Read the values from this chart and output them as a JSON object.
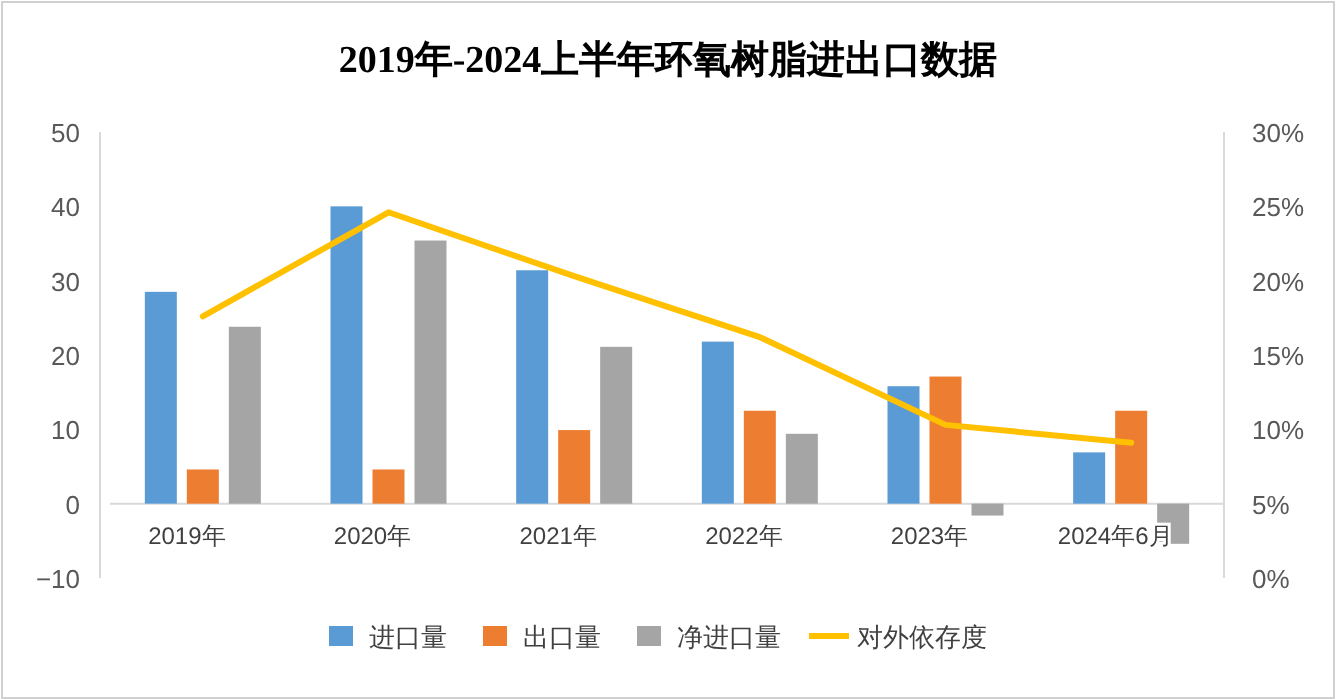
{
  "chart_data": {
    "type": "bar",
    "title": "2019年-2024上半年环氧树脂进出口数据",
    "categories": [
      "2019年",
      "2020年",
      "2021年",
      "2022年",
      "2023年",
      "2024年6月"
    ],
    "series": [
      {
        "name": "进口量",
        "color": "#5b9bd5",
        "values": [
          28.5,
          40,
          31.4,
          21.8,
          15.8,
          6.9
        ]
      },
      {
        "name": "出口量",
        "color": "#ed7d31",
        "values": [
          4.6,
          4.6,
          9.9,
          12.5,
          17.1,
          12.5
        ]
      },
      {
        "name": "净进口量",
        "color": "#a5a5a5",
        "values": [
          23.8,
          35.4,
          21.1,
          9.4,
          -1.6,
          -5.4
        ]
      },
      {
        "name": "对外依存度",
        "color": "#ffc000",
        "type": "line",
        "axis": "y2",
        "values": [
          17.6,
          24.6,
          20.3,
          16.2,
          10.3,
          9.1
        ]
      }
    ],
    "ylim": [
      -10,
      50
    ],
    "yticks": [
      -10,
      0,
      10,
      20,
      30,
      40,
      50
    ],
    "y2lim": [
      0,
      30
    ],
    "y2ticks": [
      {
        "value": 0,
        "label": "0%"
      },
      {
        "value": 5,
        "label": "5%"
      },
      {
        "value": 10,
        "label": "10%"
      },
      {
        "value": 15,
        "label": "15%"
      },
      {
        "value": 20,
        "label": "20%"
      },
      {
        "value": 25,
        "label": "25%"
      },
      {
        "value": 30,
        "label": "30%"
      }
    ],
    "legend": "bottom",
    "grid": false
  }
}
